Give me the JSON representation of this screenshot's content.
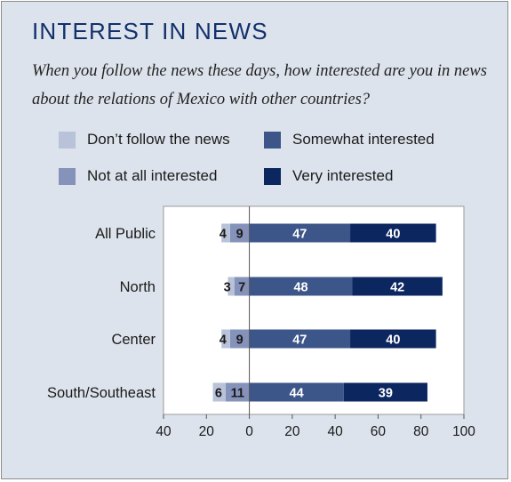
{
  "title": "INTEREST IN NEWS",
  "subtitle": "When you follow the news these days, how interested are you in news about the relations of Mexico with other countries?",
  "colors": {
    "dont_follow": "#b8c2d8",
    "not_at_all": "#8592ba",
    "somewhat": "#3d5689",
    "very": "#0c2660",
    "title": "#12306a"
  },
  "legend": [
    {
      "label": "Don’t follow the news",
      "color": "#b8c2d8"
    },
    {
      "label": "Somewhat interested",
      "color": "#3d5689"
    },
    {
      "label": "Not at all interested",
      "color": "#8592ba"
    },
    {
      "label": "Very interested",
      "color": "#0c2660"
    }
  ],
  "chart_data": {
    "type": "bar",
    "orientation": "horizontal-diverging",
    "categories": [
      "All Public",
      "North",
      "Center",
      "South/Southeast"
    ],
    "series": [
      {
        "name": "Don’t follow the news",
        "side": "negative",
        "values": [
          4,
          3,
          4,
          6
        ]
      },
      {
        "name": "Not at all interested",
        "side": "negative",
        "values": [
          9,
          7,
          9,
          11
        ]
      },
      {
        "name": "Somewhat interested",
        "side": "positive",
        "values": [
          47,
          48,
          47,
          44
        ]
      },
      {
        "name": "Very interested",
        "side": "positive",
        "values": [
          40,
          42,
          40,
          39
        ]
      }
    ],
    "xlim": [
      -40,
      100
    ],
    "xticks": [
      -40,
      -20,
      0,
      20,
      40,
      60,
      80,
      100
    ],
    "xtick_labels": [
      "40",
      "20",
      "0",
      "20",
      "40",
      "60",
      "80",
      "100"
    ],
    "grid": false
  }
}
